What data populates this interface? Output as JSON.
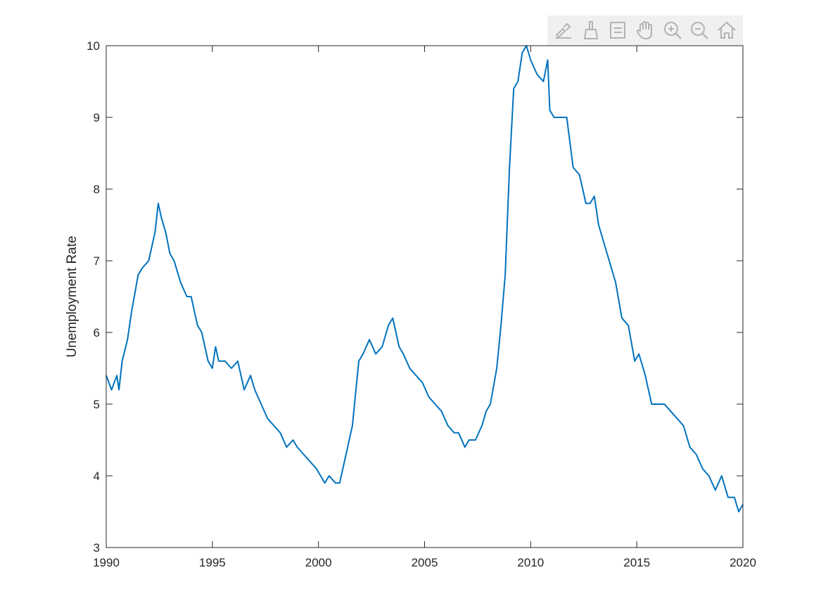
{
  "toolbar": {
    "items": [
      {
        "name": "brush-edit-icon"
      },
      {
        "name": "data-brush-icon"
      },
      {
        "name": "legend-icon"
      },
      {
        "name": "pan-hand-icon"
      },
      {
        "name": "zoom-in-icon"
      },
      {
        "name": "zoom-out-icon"
      },
      {
        "name": "home-icon"
      }
    ]
  },
  "chart_data": {
    "type": "line",
    "title": "",
    "xlabel": "",
    "ylabel": "Unemployment Rate",
    "xlim": [
      1990,
      2020
    ],
    "ylim": [
      3,
      10
    ],
    "xticks": [
      1990,
      1995,
      2000,
      2005,
      2010,
      2015,
      2020
    ],
    "yticks": [
      3,
      4,
      5,
      6,
      7,
      8,
      9,
      10
    ],
    "grid": false,
    "line_color": "#0072BD",
    "series": [
      {
        "x": [
          1990.0,
          1990.25,
          1990.5,
          1990.6,
          1990.75,
          1991.0,
          1991.2,
          1991.5,
          1991.7,
          1992.0,
          1992.3,
          1992.45,
          1992.6,
          1992.8,
          1993.0,
          1993.2,
          1993.5,
          1993.8,
          1994.0,
          1994.3,
          1994.5,
          1994.8,
          1995.0,
          1995.15,
          1995.3,
          1995.6,
          1995.9,
          1996.2,
          1996.5,
          1996.8,
          1997.0,
          1997.3,
          1997.6,
          1997.9,
          1998.2,
          1998.5,
          1998.8,
          1999.0,
          1999.3,
          1999.6,
          1999.9,
          2000.1,
          2000.3,
          2000.5,
          2000.8,
          2001.0,
          2001.3,
          2001.6,
          2001.9,
          2002.1,
          2002.4,
          2002.7,
          2003.0,
          2003.3,
          2003.5,
          2003.8,
          2004.0,
          2004.3,
          2004.6,
          2004.9,
          2005.2,
          2005.5,
          2005.8,
          2006.1,
          2006.4,
          2006.6,
          2006.9,
          2007.1,
          2007.4,
          2007.7,
          2007.9,
          2008.1,
          2008.4,
          2008.6,
          2008.8,
          2009.0,
          2009.2,
          2009.4,
          2009.6,
          2009.8,
          2010.0,
          2010.3,
          2010.6,
          2010.8,
          2010.9,
          2011.1,
          2011.4,
          2011.7,
          2012.0,
          2012.3,
          2012.6,
          2012.8,
          2013.0,
          2013.2,
          2013.5,
          2013.8,
          2014.0,
          2014.3,
          2014.6,
          2014.9,
          2015.1,
          2015.4,
          2015.7,
          2016.0,
          2016.3,
          2016.6,
          2016.9,
          2017.2,
          2017.5,
          2017.8,
          2018.1,
          2018.4,
          2018.7,
          2019.0,
          2019.3,
          2019.6,
          2019.8,
          2020.0
        ],
        "y": [
          5.4,
          5.2,
          5.4,
          5.2,
          5.6,
          5.9,
          6.3,
          6.8,
          6.9,
          7.0,
          7.4,
          7.8,
          7.6,
          7.4,
          7.1,
          7.0,
          6.7,
          6.5,
          6.5,
          6.1,
          6.0,
          5.6,
          5.5,
          5.8,
          5.6,
          5.6,
          5.5,
          5.6,
          5.2,
          5.4,
          5.2,
          5.0,
          4.8,
          4.7,
          4.6,
          4.4,
          4.5,
          4.4,
          4.3,
          4.2,
          4.1,
          4.0,
          3.9,
          4.0,
          3.9,
          3.9,
          4.3,
          4.7,
          5.6,
          5.7,
          5.9,
          5.7,
          5.8,
          6.1,
          6.2,
          5.8,
          5.7,
          5.5,
          5.4,
          5.3,
          5.1,
          5.0,
          4.9,
          4.7,
          4.6,
          4.6,
          4.4,
          4.5,
          4.5,
          4.7,
          4.9,
          5.0,
          5.5,
          6.1,
          6.8,
          8.3,
          9.4,
          9.5,
          9.9,
          10.0,
          9.8,
          9.6,
          9.5,
          9.8,
          9.1,
          9.0,
          9.0,
          9.0,
          8.3,
          8.2,
          7.8,
          7.8,
          7.9,
          7.5,
          7.2,
          6.9,
          6.7,
          6.2,
          6.1,
          5.6,
          5.7,
          5.4,
          5.0,
          5.0,
          5.0,
          4.9,
          4.8,
          4.7,
          4.4,
          4.3,
          4.1,
          4.0,
          3.8,
          4.0,
          3.7,
          3.7,
          3.5,
          3.6
        ]
      }
    ]
  }
}
